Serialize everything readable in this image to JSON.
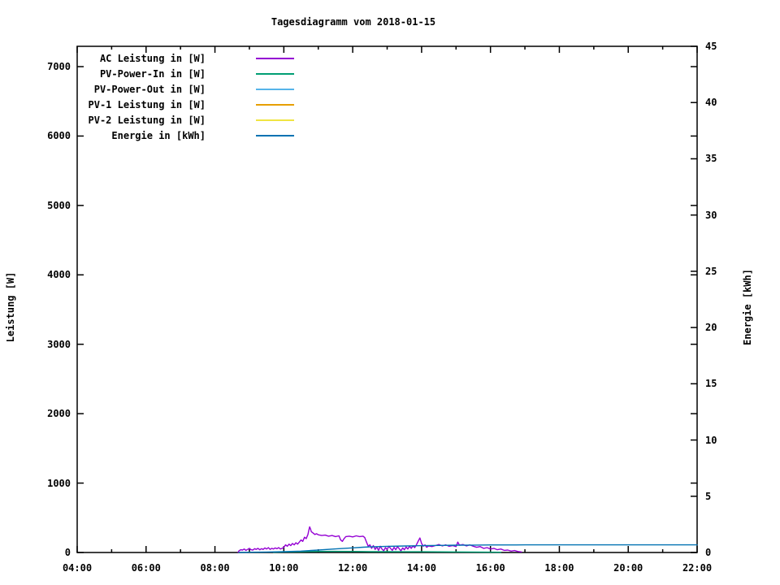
{
  "chart_data": {
    "type": "line",
    "title": "Tagesdiagramm vom 2018-01-15",
    "grid": false,
    "legend_position": "top-left-inside",
    "background": "#ffffff",
    "axis_color": "#000000",
    "x_axis": {
      "unit": "time of day",
      "range_hours": [
        4,
        22
      ],
      "major_ticks": [
        {
          "hour": 4,
          "label": "04:00"
        },
        {
          "hour": 6,
          "label": "06:00"
        },
        {
          "hour": 8,
          "label": "08:00"
        },
        {
          "hour": 10,
          "label": "10:00"
        },
        {
          "hour": 12,
          "label": "12:00"
        },
        {
          "hour": 14,
          "label": "14:00"
        },
        {
          "hour": 16,
          "label": "16:00"
        },
        {
          "hour": 18,
          "label": "18:00"
        },
        {
          "hour": 20,
          "label": "20:00"
        },
        {
          "hour": 22,
          "label": "22:00"
        }
      ],
      "minor_tick_hours": [
        5,
        7,
        9,
        11,
        13,
        15,
        17,
        19,
        21
      ]
    },
    "y_left": {
      "label": "Leistung [W]",
      "range": [
        0,
        7290
      ],
      "ticks": [
        0,
        1000,
        2000,
        3000,
        4000,
        5000,
        6000,
        7000
      ]
    },
    "y_right": {
      "label": "Energie [kWh]",
      "range": [
        0,
        45
      ],
      "ticks": [
        0,
        5,
        10,
        15,
        20,
        25,
        30,
        35,
        40,
        45
      ]
    },
    "series": [
      {
        "name": "AC Leistung in [W]",
        "color": "#9400d3",
        "axis": "left",
        "points": [
          [
            8.67,
            5
          ],
          [
            8.7,
            25
          ],
          [
            8.75,
            40
          ],
          [
            8.8,
            35
          ],
          [
            8.85,
            50
          ],
          [
            8.9,
            30
          ],
          [
            8.95,
            45
          ],
          [
            9.0,
            60
          ],
          [
            9.05,
            40
          ],
          [
            9.1,
            35
          ],
          [
            9.15,
            55
          ],
          [
            9.2,
            45
          ],
          [
            9.25,
            60
          ],
          [
            9.3,
            40
          ],
          [
            9.35,
            55
          ],
          [
            9.4,
            45
          ],
          [
            9.45,
            65
          ],
          [
            9.5,
            50
          ],
          [
            9.55,
            70
          ],
          [
            9.6,
            45
          ],
          [
            9.65,
            60
          ],
          [
            9.7,
            50
          ],
          [
            9.75,
            65
          ],
          [
            9.8,
            55
          ],
          [
            9.85,
            70
          ],
          [
            9.9,
            50
          ],
          [
            9.95,
            60
          ],
          [
            10.0,
            75
          ],
          [
            10.05,
            110
          ],
          [
            10.1,
            90
          ],
          [
            10.15,
            120
          ],
          [
            10.2,
            100
          ],
          [
            10.25,
            130
          ],
          [
            10.3,
            110
          ],
          [
            10.35,
            140
          ],
          [
            10.4,
            120
          ],
          [
            10.45,
            150
          ],
          [
            10.5,
            180
          ],
          [
            10.55,
            160
          ],
          [
            10.6,
            220
          ],
          [
            10.65,
            200
          ],
          [
            10.7,
            260
          ],
          [
            10.72,
            310
          ],
          [
            10.75,
            370
          ],
          [
            10.78,
            330
          ],
          [
            10.8,
            300
          ],
          [
            10.85,
            280
          ],
          [
            10.9,
            260
          ],
          [
            10.95,
            270
          ],
          [
            11.0,
            255
          ],
          [
            11.1,
            245
          ],
          [
            11.2,
            250
          ],
          [
            11.3,
            235
          ],
          [
            11.4,
            245
          ],
          [
            11.5,
            230
          ],
          [
            11.6,
            240
          ],
          [
            11.65,
            180
          ],
          [
            11.7,
            160
          ],
          [
            11.75,
            200
          ],
          [
            11.8,
            230
          ],
          [
            11.9,
            235
          ],
          [
            12.0,
            225
          ],
          [
            12.1,
            240
          ],
          [
            12.2,
            230
          ],
          [
            12.3,
            235
          ],
          [
            12.35,
            215
          ],
          [
            12.4,
            150
          ],
          [
            12.45,
            90
          ],
          [
            12.5,
            110
          ],
          [
            12.55,
            60
          ],
          [
            12.6,
            100
          ],
          [
            12.65,
            45
          ],
          [
            12.7,
            80
          ],
          [
            12.75,
            30
          ],
          [
            12.8,
            90
          ],
          [
            12.85,
            50
          ],
          [
            12.9,
            25
          ],
          [
            12.95,
            70
          ],
          [
            13.0,
            45
          ],
          [
            13.05,
            90
          ],
          [
            13.1,
            60
          ],
          [
            13.15,
            30
          ],
          [
            13.2,
            75
          ],
          [
            13.25,
            40
          ],
          [
            13.3,
            85
          ],
          [
            13.35,
            55
          ],
          [
            13.4,
            25
          ],
          [
            13.45,
            65
          ],
          [
            13.5,
            40
          ],
          [
            13.55,
            80
          ],
          [
            13.6,
            50
          ],
          [
            13.65,
            90
          ],
          [
            13.7,
            60
          ],
          [
            13.75,
            95
          ],
          [
            13.8,
            70
          ],
          [
            13.85,
            110
          ],
          [
            13.9,
            160
          ],
          [
            13.95,
            210
          ],
          [
            14.0,
            130
          ],
          [
            14.05,
            90
          ],
          [
            14.1,
            110
          ],
          [
            14.15,
            75
          ],
          [
            14.2,
            95
          ],
          [
            14.3,
            85
          ],
          [
            14.4,
            100
          ],
          [
            14.5,
            115
          ],
          [
            14.6,
            95
          ],
          [
            14.7,
            110
          ],
          [
            14.8,
            90
          ],
          [
            14.9,
            100
          ],
          [
            15.0,
            85
          ],
          [
            15.05,
            150
          ],
          [
            15.1,
            105
          ],
          [
            15.2,
            115
          ],
          [
            15.3,
            95
          ],
          [
            15.4,
            110
          ],
          [
            15.5,
            90
          ],
          [
            15.6,
            75
          ],
          [
            15.7,
            85
          ],
          [
            15.8,
            60
          ],
          [
            15.9,
            70
          ],
          [
            16.0,
            50
          ],
          [
            16.1,
            60
          ],
          [
            16.2,
            40
          ],
          [
            16.3,
            50
          ],
          [
            16.4,
            30
          ],
          [
            16.5,
            35
          ],
          [
            16.6,
            20
          ],
          [
            16.7,
            28
          ],
          [
            16.8,
            14
          ],
          [
            16.9,
            8
          ]
        ]
      },
      {
        "name": "PV-Power-In in [W]",
        "color": "#009e73",
        "axis": "left",
        "points": [
          [
            9.7,
            4
          ],
          [
            10.0,
            8
          ],
          [
            10.5,
            12
          ],
          [
            11.0,
            15
          ],
          [
            11.5,
            16
          ],
          [
            12.0,
            15
          ],
          [
            12.5,
            13
          ],
          [
            13.0,
            12
          ],
          [
            13.5,
            11
          ],
          [
            14.0,
            10
          ],
          [
            14.5,
            9
          ],
          [
            15.0,
            8
          ],
          [
            15.5,
            7
          ],
          [
            16.0,
            5
          ],
          [
            16.3,
            3
          ]
        ]
      },
      {
        "name": "PV-Power-Out in [W]",
        "color": "#56b4e9",
        "axis": "left",
        "points": []
      },
      {
        "name": "PV-1 Leistung in [W]",
        "color": "#e69f00",
        "axis": "left",
        "points": []
      },
      {
        "name": "PV-2 Leistung in [W]",
        "color": "#f0e442",
        "axis": "left",
        "points": []
      },
      {
        "name": "Energie in [kWh]",
        "color": "#0072b2",
        "axis": "right",
        "points": [
          [
            8.7,
            0.0
          ],
          [
            9.0,
            0.02
          ],
          [
            9.5,
            0.04
          ],
          [
            10.0,
            0.07
          ],
          [
            10.5,
            0.12
          ],
          [
            10.8,
            0.18
          ],
          [
            11.0,
            0.22
          ],
          [
            11.5,
            0.32
          ],
          [
            12.0,
            0.41
          ],
          [
            12.3,
            0.47
          ],
          [
            12.5,
            0.5
          ],
          [
            13.0,
            0.55
          ],
          [
            13.5,
            0.58
          ],
          [
            14.0,
            0.61
          ],
          [
            14.5,
            0.63
          ],
          [
            15.0,
            0.65
          ],
          [
            15.5,
            0.66
          ],
          [
            16.0,
            0.67
          ],
          [
            16.5,
            0.675
          ],
          [
            17.0,
            0.68
          ],
          [
            18.0,
            0.68
          ],
          [
            19.0,
            0.68
          ],
          [
            20.0,
            0.68
          ],
          [
            21.0,
            0.68
          ],
          [
            22.0,
            0.68
          ]
        ]
      }
    ]
  }
}
